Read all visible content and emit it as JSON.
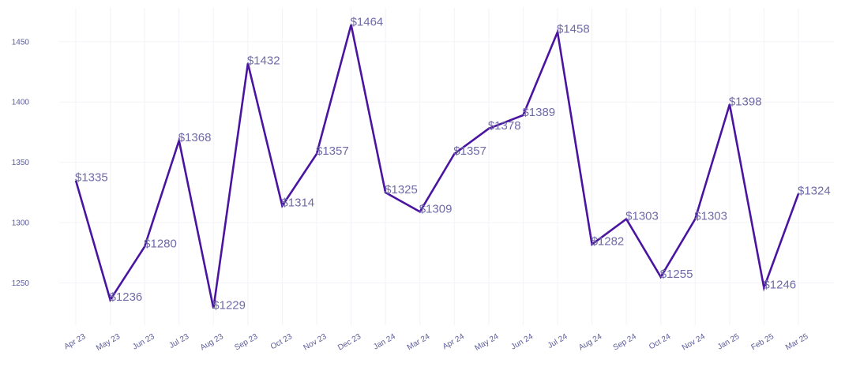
{
  "chart_data": {
    "type": "line",
    "title": "",
    "xlabel": "",
    "ylabel": "",
    "ylim": [
      1215,
      1478
    ],
    "yticks": [
      1250,
      1300,
      1350,
      1400,
      1450
    ],
    "grid": true,
    "colors": {
      "line": "#4a14a0",
      "label": "#6f6aa8",
      "tick": "#5b5b9a",
      "grid": "#f3f2f8"
    },
    "categories": [
      "Apr 23",
      "May 23",
      "Jun 23",
      "Jul 23",
      "Aug 23",
      "Sep 23",
      "Oct 23",
      "Nov 23",
      "Dec 23",
      "Jan 24",
      "Mar 24",
      "Apr 24",
      "May 24",
      "Jun 24",
      "Jul 24",
      "Aug 24",
      "Sep 24",
      "Oct 24",
      "Nov 24",
      "Jan 25",
      "Feb 25",
      "Mar 25"
    ],
    "values": [
      1335,
      1236,
      1280,
      1368,
      1229,
      1432,
      1314,
      1357,
      1464,
      1325,
      1309,
      1357,
      1378,
      1389,
      1458,
      1282,
      1303,
      1255,
      1303,
      1398,
      1246,
      1324
    ],
    "data_labels": [
      "$1335",
      "$1236",
      "$1280",
      "$1368",
      "$1229",
      "$1432",
      "$1314",
      "$1357",
      "$1464",
      "$1325",
      "$1309",
      "$1357",
      "$1378",
      "$1389",
      "$1458",
      "$1282",
      "$1303",
      "$1255",
      "$1303",
      "$1398",
      "$1246",
      "$1324"
    ]
  }
}
